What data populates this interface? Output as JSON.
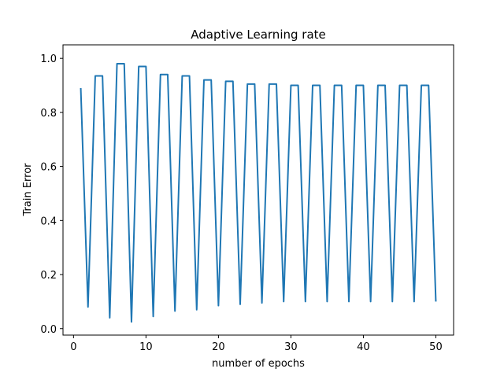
{
  "chart_data": {
    "type": "line",
    "title": "Adaptive Learning rate",
    "xlabel": "number of epochs",
    "ylabel": "Train Error",
    "xlim": [
      -1.45,
      52.45
    ],
    "ylim": [
      -0.024,
      1.05
    ],
    "xticks": [
      0,
      10,
      20,
      30,
      40,
      50
    ],
    "xtick_labels": [
      "0",
      "10",
      "20",
      "30",
      "40",
      "50"
    ],
    "yticks": [
      0.0,
      0.2,
      0.4,
      0.6,
      0.8,
      1.0
    ],
    "ytick_labels": [
      "0.0",
      "0.2",
      "0.4",
      "0.6",
      "0.8",
      "1.0"
    ],
    "grid": false,
    "series": [
      {
        "color": "#1f77b4",
        "x": [
          1,
          2,
          3,
          4,
          5,
          6,
          7,
          8,
          9,
          10,
          11,
          12,
          13,
          14,
          15,
          16,
          17,
          18,
          19,
          20,
          21,
          22,
          23,
          24,
          25,
          26,
          27,
          28,
          29,
          30,
          31,
          32,
          33,
          34,
          35,
          36,
          37,
          38,
          39,
          40,
          41,
          42,
          43,
          44,
          45,
          46,
          47,
          48,
          49,
          50
        ],
        "y": [
          0.89,
          0.08,
          0.935,
          0.935,
          0.04,
          0.98,
          0.98,
          0.025,
          0.97,
          0.97,
          0.045,
          0.94,
          0.94,
          0.065,
          0.935,
          0.935,
          0.07,
          0.92,
          0.92,
          0.085,
          0.915,
          0.915,
          0.09,
          0.905,
          0.905,
          0.095,
          0.905,
          0.905,
          0.1,
          0.9,
          0.9,
          0.1,
          0.9,
          0.9,
          0.1,
          0.9,
          0.9,
          0.1,
          0.9,
          0.9,
          0.1,
          0.9,
          0.9,
          0.1,
          0.9,
          0.9,
          0.1,
          0.9,
          0.9,
          0.1
        ]
      }
    ]
  }
}
